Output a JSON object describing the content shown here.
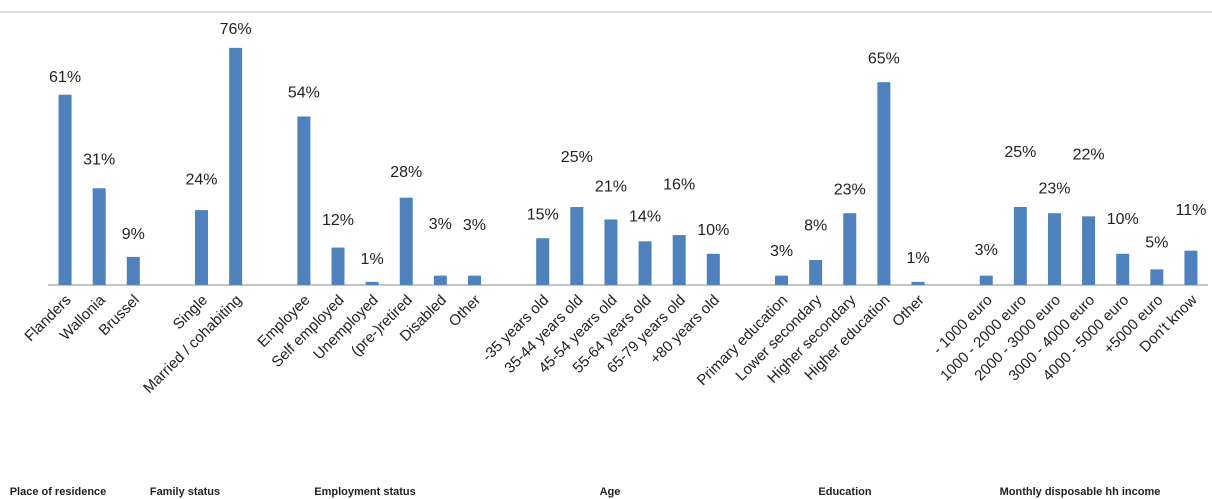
{
  "chart_data": {
    "type": "bar",
    "categories": [
      "Flanders",
      "Wallonia",
      "Brussel",
      null,
      "Single",
      "Married / cohabiting",
      null,
      "Employee",
      "Self employed",
      "Unemployed",
      "(pre-)retired",
      "Disabled",
      "Other",
      null,
      "-35 years old",
      "35-44 years old",
      "45-54 years old",
      "55-64 years old",
      "65-79 years old",
      "+80 years old",
      null,
      "Primary education",
      "Lower secondary",
      "Higher secondary",
      "Higher education",
      "Other",
      null,
      "- 1000 euro",
      "1000 - 2000 euro",
      "2000 - 3000 euro",
      "3000 - 4000 euro",
      "4000 - 5000 euro",
      "+5000 euro",
      "Don't know"
    ],
    "values": [
      61,
      31,
      9,
      null,
      24,
      76,
      null,
      54,
      12,
      1,
      28,
      3,
      3,
      null,
      15,
      25,
      21,
      14,
      16,
      10,
      null,
      3,
      8,
      23,
      65,
      1,
      null,
      3,
      25,
      23,
      22,
      10,
      5,
      11
    ],
    "value_labels": [
      "61%",
      "31%",
      "9%",
      null,
      "24%",
      "76%",
      null,
      "54%",
      "12%",
      "1%",
      "28%",
      "3%",
      "3%",
      null,
      "15%",
      "25%",
      "21%",
      "14%",
      "16%",
      "10%",
      null,
      "3%",
      "8%",
      "23%",
      "65%",
      "1%",
      null,
      "3%",
      "25%",
      "23%",
      "22%",
      "10%",
      "5%",
      "11%"
    ],
    "groups": [
      "Place of residence",
      "Family status",
      "Employment status",
      "Age",
      "Education",
      "Monthly disposable hh income"
    ],
    "color": "#4f81bd",
    "ylim": [
      0,
      87.5
    ]
  }
}
